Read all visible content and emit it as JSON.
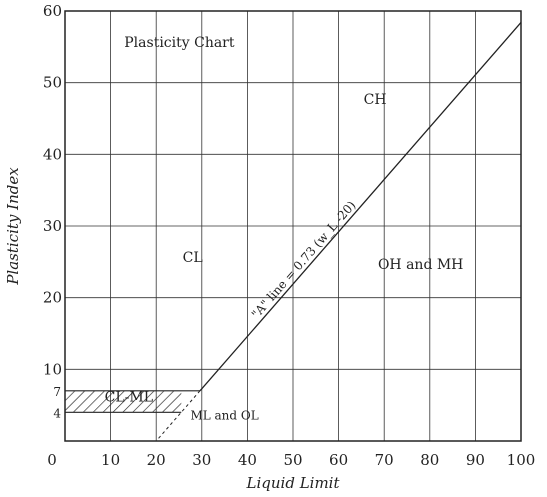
{
  "chart_data": {
    "type": "line",
    "title": "Plasticity Chart",
    "xlabel": "Liquid Limit",
    "ylabel": "Plasticity Index",
    "xlim": [
      0,
      100
    ],
    "ylim": [
      0,
      60
    ],
    "x_ticks": [
      "0",
      "10",
      "20",
      "30",
      "40",
      "50",
      "60",
      "70",
      "80",
      "90",
      "100"
    ],
    "y_ticks": [
      "0",
      "10",
      "20",
      "30",
      "40",
      "50",
      "60"
    ],
    "extra_y_ticks": [
      "4",
      "7"
    ],
    "grid": true,
    "series": [
      {
        "line_label": "\"A\" line = 0.73 (w_L -20)",
        "x": [
          29.6,
          100
        ],
        "y": [
          7,
          58.4
        ]
      }
    ],
    "regions": [
      {
        "label": "CH",
        "x": 68,
        "y": 47
      },
      {
        "label": "CL",
        "x": 28,
        "y": 25
      },
      {
        "label": "OH and MH",
        "x": 78,
        "y": 24
      },
      {
        "label": "CL-ML",
        "x": 14,
        "y": 5.5
      },
      {
        "label": "ML and OL",
        "x": 35,
        "y": 3
      }
    ],
    "cl_ml_band": {
      "x_start": 0,
      "x_end": 25.5,
      "y_low": 4,
      "y_high": 7
    }
  }
}
